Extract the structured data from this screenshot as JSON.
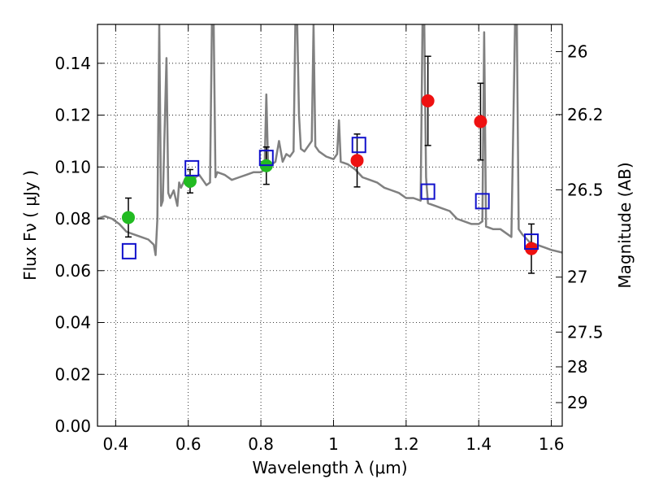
{
  "chart_data": {
    "type": "scatter",
    "xlabel": "Wavelength  λ (μm)",
    "ylabel": "Flux  Fν  ( μJy )",
    "y2label": "Magnitude (AB)",
    "xlim": [
      0.35,
      1.63
    ],
    "ylim": [
      0.0,
      0.155
    ],
    "grid": true,
    "x_ticks": [
      "0.4",
      "0.6",
      "0.8",
      "1",
      "1.2",
      "1.4",
      "1.6"
    ],
    "y_ticks": [
      "0.00",
      "0.02",
      "0.04",
      "0.06",
      "0.08",
      "0.10",
      "0.12",
      "0.14"
    ],
    "y2_ticks": [
      {
        "label": "26",
        "flux": 0.1445
      },
      {
        "label": "26.2",
        "flux": 0.1202
      },
      {
        "label": "26.5",
        "flux": 0.0912
      },
      {
        "label": "27",
        "flux": 0.0575
      },
      {
        "label": "27.5",
        "flux": 0.0363
      },
      {
        "label": "28",
        "flux": 0.0229
      },
      {
        "label": "29",
        "flux": 0.0091
      }
    ],
    "series": [
      {
        "kind": "line",
        "color": "#808080",
        "x": [
          0.35,
          0.37,
          0.39,
          0.41,
          0.43,
          0.45,
          0.47,
          0.49,
          0.505,
          0.51,
          0.515,
          0.52,
          0.525,
          0.53,
          0.54,
          0.545,
          0.55,
          0.56,
          0.57,
          0.575,
          0.58,
          0.59,
          0.6,
          0.61,
          0.62,
          0.63,
          0.64,
          0.65,
          0.66,
          0.665,
          0.67,
          0.675,
          0.68,
          0.7,
          0.72,
          0.74,
          0.76,
          0.78,
          0.8,
          0.81,
          0.815,
          0.82,
          0.83,
          0.84,
          0.85,
          0.86,
          0.87,
          0.88,
          0.89,
          0.895,
          0.9,
          0.905,
          0.91,
          0.92,
          0.93,
          0.94,
          0.945,
          0.95,
          0.96,
          0.98,
          1.0,
          1.01,
          1.015,
          1.02,
          1.04,
          1.06,
          1.08,
          1.1,
          1.12,
          1.14,
          1.16,
          1.18,
          1.2,
          1.22,
          1.24,
          1.245,
          1.25,
          1.255,
          1.26,
          1.28,
          1.3,
          1.32,
          1.34,
          1.36,
          1.38,
          1.4,
          1.41,
          1.415,
          1.42,
          1.44,
          1.46,
          1.48,
          1.49,
          1.5,
          1.505,
          1.51,
          1.52,
          1.54,
          1.56,
          1.58,
          1.6,
          1.63
        ],
        "y": [
          0.08,
          0.081,
          0.08,
          0.078,
          0.075,
          0.074,
          0.073,
          0.072,
          0.07,
          0.066,
          0.08,
          0.155,
          0.085,
          0.087,
          0.142,
          0.09,
          0.088,
          0.091,
          0.085,
          0.094,
          0.092,
          0.095,
          0.093,
          0.094,
          0.096,
          0.097,
          0.095,
          0.093,
          0.094,
          0.155,
          0.155,
          0.096,
          0.098,
          0.097,
          0.095,
          0.096,
          0.097,
          0.098,
          0.098,
          0.099,
          0.128,
          0.1,
          0.101,
          0.102,
          0.11,
          0.102,
          0.105,
          0.104,
          0.106,
          0.155,
          0.155,
          0.12,
          0.107,
          0.106,
          0.108,
          0.11,
          0.155,
          0.108,
          0.106,
          0.104,
          0.103,
          0.105,
          0.118,
          0.102,
          0.101,
          0.099,
          0.096,
          0.095,
          0.094,
          0.092,
          0.091,
          0.09,
          0.088,
          0.088,
          0.087,
          0.155,
          0.155,
          0.096,
          0.086,
          0.085,
          0.084,
          0.083,
          0.08,
          0.079,
          0.078,
          0.078,
          0.079,
          0.152,
          0.077,
          0.076,
          0.076,
          0.074,
          0.073,
          0.155,
          0.155,
          0.076,
          0.074,
          0.071,
          0.07,
          0.069,
          0.068,
          0.067
        ]
      },
      {
        "name": "",
        "kind": "scatter",
        "marker": "circle",
        "color": "#22bb22",
        "x": [
          0.435,
          0.605,
          0.815
        ],
        "y": [
          0.0805,
          0.0945,
          0.1005
        ],
        "yerr": [
          0.0075,
          0.0045,
          0.0072
        ]
      },
      {
        "name": "",
        "kind": "scatter",
        "marker": "circle",
        "color": "#ee1111",
        "x": [
          1.065,
          1.26,
          1.405,
          1.545
        ],
        "y": [
          0.1025,
          0.1255,
          0.1175,
          0.0685
        ],
        "yerr": [
          0.0102,
          0.0172,
          0.0148,
          0.0095
        ]
      },
      {
        "name": "",
        "kind": "scatter",
        "marker": "square",
        "color": "#1111cc",
        "x": [
          0.437,
          0.61,
          0.815,
          1.07,
          1.26,
          1.41,
          1.545
        ],
        "y": [
          0.0675,
          0.0995,
          0.1035,
          0.1085,
          0.0905,
          0.0868,
          0.0712
        ]
      }
    ]
  }
}
